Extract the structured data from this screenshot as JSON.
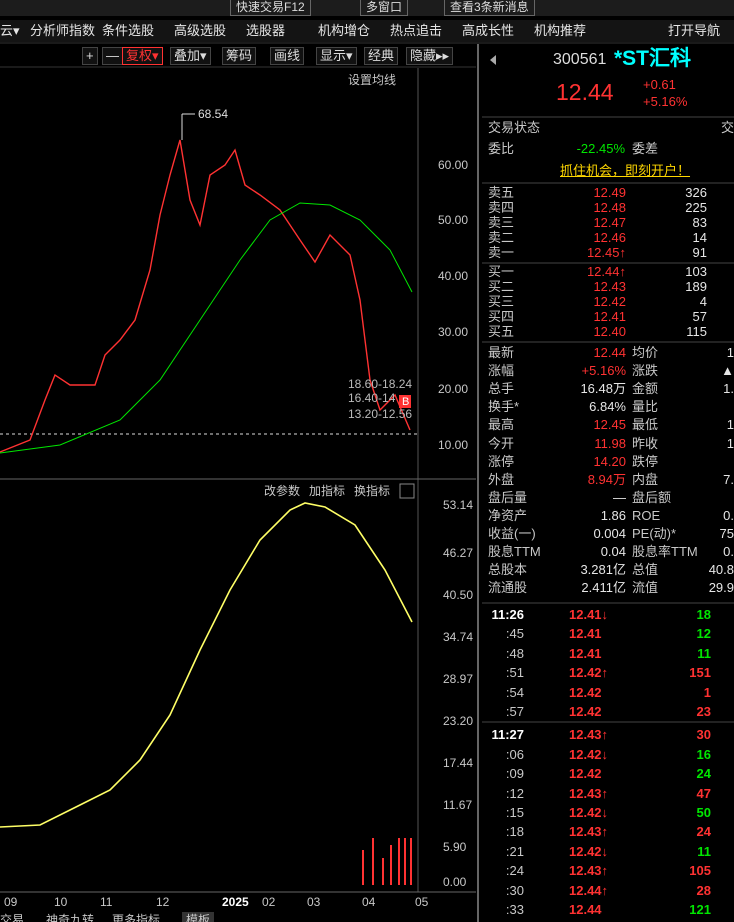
{
  "top_bar": {
    "items": [
      "快速交易F12",
      "多窗口",
      "查看3条新消息"
    ]
  },
  "menu": {
    "items": [
      "云▾",
      "分析师指数",
      "条件选股",
      "高级选股",
      "选股器",
      "机构增仓",
      "热点追击",
      "高成长性",
      "机构推荐",
      "打开导航"
    ]
  },
  "toolbar": {
    "items": [
      "+",
      "—",
      "复权▾",
      "叠加▾",
      "筹码",
      "画线",
      "显示▾",
      "经典",
      "隐藏▸▸"
    ]
  },
  "main_chart": {
    "setting": "设置均线",
    "y_labels": [
      "60.00",
      "50.00",
      "40.00",
      "30.00",
      "20.00",
      "10.00"
    ],
    "high_label": "68.54",
    "ranges": [
      "18.60-18.24",
      "16.40-14",
      "13.20-12.56"
    ],
    "badge": "B"
  },
  "indicator": {
    "buttons": [
      "改参数",
      "加指标",
      "换指标"
    ],
    "y_labels": [
      "53.14",
      "46.27",
      "40.50",
      "34.74",
      "28.97",
      "23.20",
      "17.44",
      "11.67",
      "5.90",
      "0.00"
    ]
  },
  "x_labels": [
    "09",
    "10",
    "11",
    "12",
    "2025",
    "02",
    "03",
    "04",
    "05"
  ],
  "bottom_tabs": [
    "交易",
    "神奇九转",
    "更多指标",
    "模板"
  ],
  "quote": {
    "code": "300561",
    "name": "*ST汇科",
    "price": "12.44",
    "change": "+0.61",
    "pct": "+5.16%",
    "status_label": "交易状态",
    "status_value": "交",
    "ratio_label": "委比",
    "ratio": "-22.45%",
    "diff_label": "委差",
    "promo": "抓住机会，即刻开户！"
  },
  "sells": [
    {
      "label": "卖五",
      "price": "12.49",
      "vol": "326"
    },
    {
      "label": "卖四",
      "price": "12.48",
      "vol": "225"
    },
    {
      "label": "卖三",
      "price": "12.47",
      "vol": "83"
    },
    {
      "label": "卖二",
      "price": "12.46",
      "vol": "14"
    },
    {
      "label": "卖一",
      "price": "12.45↑",
      "vol": "91"
    }
  ],
  "buys": [
    {
      "label": "买一",
      "price": "12.44↑",
      "vol": "103"
    },
    {
      "label": "买二",
      "price": "12.43",
      "vol": "189"
    },
    {
      "label": "买三",
      "price": "12.42",
      "vol": "4"
    },
    {
      "label": "买四",
      "price": "12.41",
      "vol": "57"
    },
    {
      "label": "买五",
      "price": "12.40",
      "vol": "115"
    }
  ],
  "stats": [
    {
      "label": "最新",
      "value": "12.44",
      "color": "#ff3232",
      "label2": "均价",
      "value2": "1"
    },
    {
      "label": "涨幅",
      "value": "+5.16%",
      "color": "#ff3232",
      "label2": "涨跌",
      "value2": "▲"
    },
    {
      "label": "总手",
      "value": "16.48万",
      "color": "#e6e6e6",
      "label2": "金额",
      "value2": "1."
    },
    {
      "label": "换手*",
      "value": "6.84%",
      "color": "#e6e6e6",
      "label2": "量比"
    },
    {
      "label": "最高",
      "value": "12.45",
      "color": "#ff3232",
      "label2": "最低",
      "value2": "1"
    },
    {
      "label": "今开",
      "value": "11.98",
      "color": "#ff3232",
      "label2": "昨收",
      "value2": "1"
    },
    {
      "label": "涨停",
      "value": "14.20",
      "color": "#ff3232",
      "label2": "跌停"
    },
    {
      "label": "外盘",
      "value": "8.94万",
      "color": "#ff3232",
      "label2": "内盘",
      "value2": "7."
    },
    {
      "label": "盘后量",
      "value": "—",
      "color": "#e6e6e6",
      "label2": "盘后额"
    },
    {
      "label": "净资产",
      "value": "1.86",
      "color": "#e6e6e6",
      "label2": "ROE",
      "value2": "0."
    },
    {
      "label": "收益(一)",
      "value": "0.004",
      "color": "#e6e6e6",
      "label2": "PE(动)*",
      "value2": "75"
    },
    {
      "label": "股息TTM",
      "value": "0.04",
      "color": "#e6e6e6",
      "label2": "股息率TTM",
      "value2": "0."
    },
    {
      "label": "总股本",
      "value": "3.281亿",
      "color": "#e6e6e6",
      "label2": "总值",
      "value2": "40.8"
    },
    {
      "label": "流通股",
      "value": "2.411亿",
      "color": "#e6e6e6",
      "label2": "流值",
      "value2": "29.9"
    }
  ],
  "ticks": [
    {
      "time": "11:26",
      "price": "12.41↓",
      "vol": "18",
      "color": "#00e600"
    },
    {
      "time": ":45",
      "price": "12.41",
      "vol": "12",
      "color": "#00e600"
    },
    {
      "time": ":48",
      "price": "12.41",
      "vol": "11",
      "color": "#00e600"
    },
    {
      "time": ":51",
      "price": "12.42↑",
      "vol": "151",
      "color": "#ff3232"
    },
    {
      "time": ":54",
      "price": "12.42",
      "vol": "1",
      "color": "#ff3232"
    },
    {
      "time": ":57",
      "price": "12.42",
      "vol": "23",
      "color": "#ff3232"
    },
    {
      "time": "11:27",
      "price": "12.43↑",
      "vol": "30",
      "color": "#ff3232"
    },
    {
      "time": ":06",
      "price": "12.42↓",
      "vol": "16",
      "color": "#00e600"
    },
    {
      "time": ":09",
      "price": "12.42",
      "vol": "24",
      "color": "#00e600"
    },
    {
      "time": ":12",
      "price": "12.43↑",
      "vol": "47",
      "color": "#ff3232"
    },
    {
      "time": ":15",
      "price": "12.42↓",
      "vol": "50",
      "color": "#00e600"
    },
    {
      "time": ":18",
      "price": "12.43↑",
      "vol": "24",
      "color": "#ff3232"
    },
    {
      "time": ":21",
      "price": "12.42↓",
      "vol": "11",
      "color": "#00e600"
    },
    {
      "time": ":24",
      "price": "12.43↑",
      "vol": "105",
      "color": "#ff3232"
    },
    {
      "time": ":30",
      "price": "12.44↑",
      "vol": "28",
      "color": "#ff3232"
    },
    {
      "time": ":33",
      "price": "12.44",
      "vol": "121",
      "color": "#00e600"
    }
  ]
}
